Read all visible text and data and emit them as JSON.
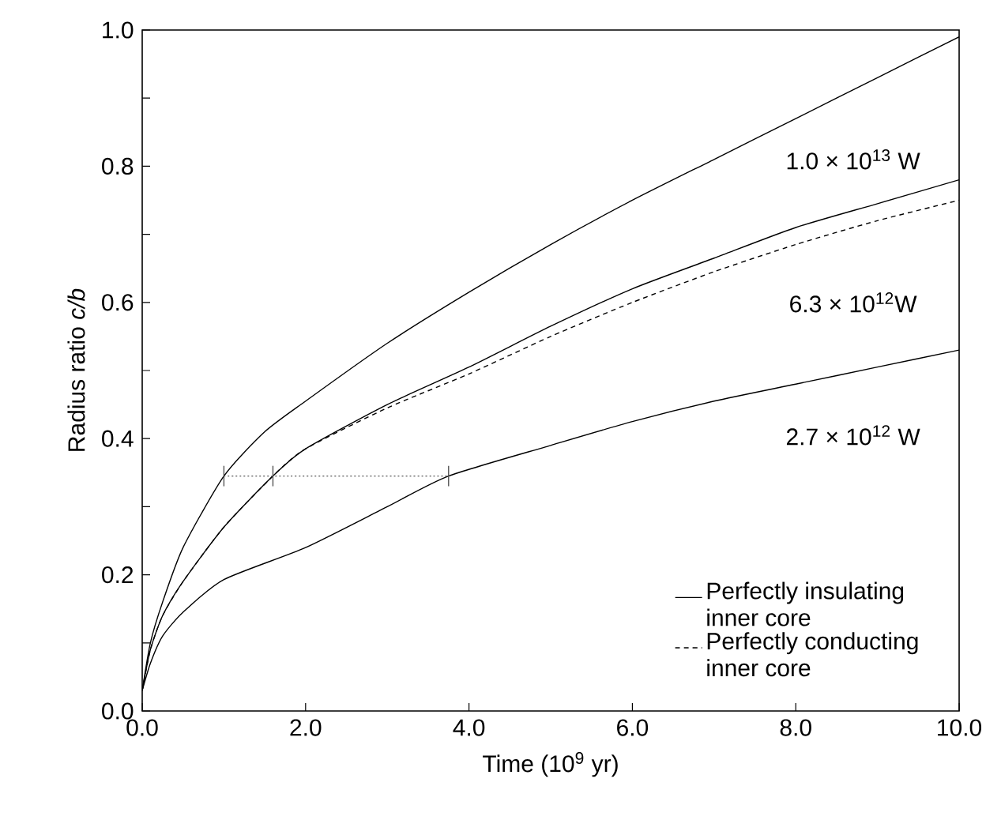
{
  "chart_data": {
    "type": "line",
    "xlabel": "Time (10$^{9}$ yr)",
    "ylabel": "Radius ratio *c/b*",
    "xlim": [
      0,
      10
    ],
    "ylim": [
      0,
      1.0
    ],
    "xticks": [
      {
        "value": 0,
        "label": "0.0"
      },
      {
        "value": 2,
        "label": "2.0"
      },
      {
        "value": 4,
        "label": "4.0"
      },
      {
        "value": 6,
        "label": "6.0"
      },
      {
        "value": 8,
        "label": "8.0"
      },
      {
        "value": 10,
        "label": "10.0"
      }
    ],
    "yticks": [
      {
        "value": 0,
        "label": "0.0"
      },
      {
        "value": 0.1,
        "label": null
      },
      {
        "value": 0.2,
        "label": "0.2"
      },
      {
        "value": 0.3,
        "label": null
      },
      {
        "value": 0.4,
        "label": "0.4"
      },
      {
        "value": 0.5,
        "label": null
      },
      {
        "value": 0.6,
        "label": "0.6"
      },
      {
        "value": 0.7,
        "label": null
      },
      {
        "value": 0.8,
        "label": "0.8"
      },
      {
        "value": 0.9,
        "label": null
      },
      {
        "value": 1.0,
        "label": "1.0"
      }
    ],
    "grid": false,
    "legend": "bottom right",
    "series": [
      {
        "color": "#000000",
        "line_style": "solid",
        "x": [
          0,
          0.1,
          0.25,
          0.5,
          1.0,
          1.5,
          2,
          3,
          4,
          5,
          6,
          7,
          8,
          9,
          10
        ],
        "values": [
          0.03,
          0.1,
          0.16,
          0.24,
          0.345,
          0.41,
          0.455,
          0.54,
          0.615,
          0.685,
          0.75,
          0.81,
          0.87,
          0.93,
          0.99
        ]
      },
      {
        "name": "Perfectly insulating inner core",
        "color": "#000000",
        "line_style": "solid",
        "x": [
          0,
          0.1,
          0.25,
          0.5,
          1.0,
          1.6,
          2,
          3,
          4,
          5,
          6,
          7,
          8,
          9,
          10
        ],
        "values": [
          0.03,
          0.09,
          0.14,
          0.19,
          0.27,
          0.345,
          0.385,
          0.45,
          0.505,
          0.565,
          0.62,
          0.665,
          0.71,
          0.745,
          0.78
        ]
      },
      {
        "name": "Perfectly conducting inner core",
        "color": "#000000",
        "line_style": "dashed",
        "x": [
          0,
          0.1,
          0.25,
          0.5,
          1.0,
          1.6,
          2,
          3,
          4,
          5,
          6,
          7,
          8,
          9,
          10
        ],
        "values": [
          0.03,
          0.09,
          0.14,
          0.19,
          0.27,
          0.345,
          0.385,
          0.445,
          0.495,
          0.55,
          0.6,
          0.645,
          0.685,
          0.72,
          0.75
        ]
      },
      {
        "color": "#000000",
        "line_style": "solid",
        "x": [
          0,
          0.1,
          0.25,
          0.5,
          1.0,
          2,
          3,
          3.75,
          5,
          6,
          7,
          8,
          9,
          10
        ],
        "values": [
          0.03,
          0.07,
          0.11,
          0.145,
          0.193,
          0.24,
          0.3,
          0.345,
          0.39,
          0.425,
          0.455,
          0.48,
          0.505,
          0.53
        ]
      },
      {
        "color": "#555555",
        "line_style": "dotted",
        "x": [
          1.0,
          1.6,
          3.75
        ],
        "values": [
          0.345,
          0.345,
          0.345
        ],
        "errors": [
          0.015,
          0.015,
          0.015
        ]
      }
    ],
    "annotations": [
      "1.0 × 10$^{13}$ W",
      "6.3 × 10$^{12}$W",
      "2.7 × 10$^{12}$ W"
    ]
  }
}
